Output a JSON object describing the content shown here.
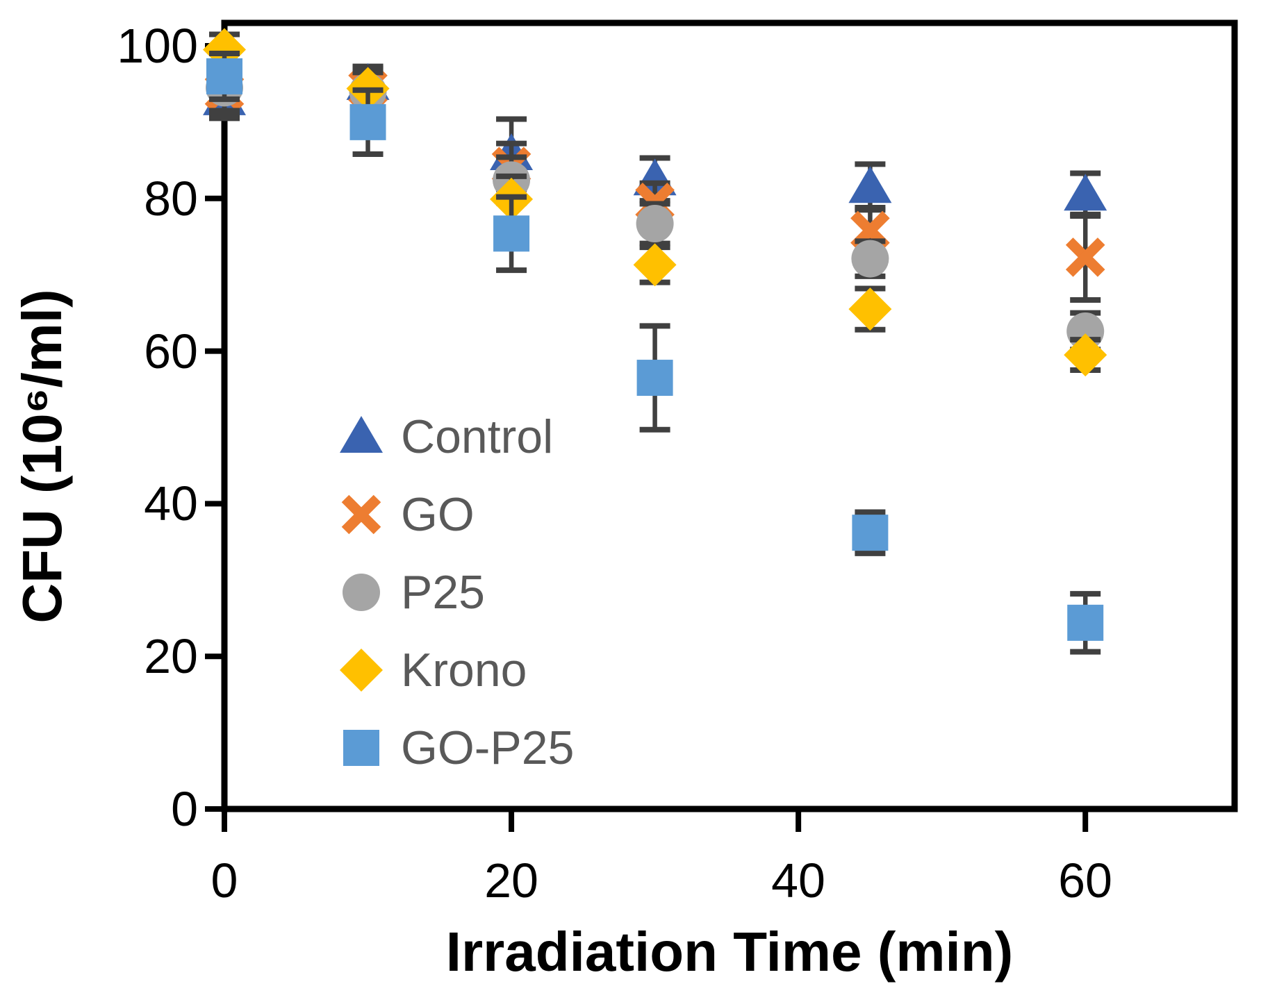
{
  "chart_data": {
    "type": "scatter",
    "title": "",
    "xlabel": "Irradiation Time (min)",
    "ylabel": "CFU (10⁶/ml)",
    "xlim": [
      0,
      70.4
    ],
    "ylim": [
      0,
      103
    ],
    "x_ticks": [
      0,
      20,
      40,
      60
    ],
    "x_tick_labels": [
      "0",
      "20",
      "40",
      "60"
    ],
    "y_ticks": [
      0,
      20,
      40,
      60,
      80,
      100
    ],
    "y_tick_labels": [
      "0",
      "20",
      "40",
      "60",
      "80",
      "100"
    ],
    "grid": false,
    "legend_position": "inside-left-middle",
    "x": [
      0,
      10,
      20,
      30,
      45,
      60
    ],
    "series": [
      {
        "name": "Control",
        "marker": "triangle",
        "color": "#3A63B0",
        "values": [
          93,
          95,
          85.8,
          82.5,
          81.5,
          80.5
        ],
        "errors": [
          2.5,
          2.3,
          4.6,
          2.8,
          3.0,
          2.8
        ]
      },
      {
        "name": "GO",
        "marker": "x",
        "color": "#ED7D31",
        "values": [
          94,
          94.5,
          84.2,
          79.5,
          75.8,
          72.3
        ],
        "errors": [
          3.0,
          2.5,
          3.0,
          2.5,
          3.0,
          5.6
        ]
      },
      {
        "name": "P25",
        "marker": "circle",
        "color": "#A5A5A5",
        "values": [
          94.5,
          94,
          82.4,
          76.7,
          72.1,
          62.6
        ],
        "errors": [
          3.0,
          2.5,
          3.0,
          2.6,
          2.3,
          2.4
        ]
      },
      {
        "name": "Krono",
        "marker": "diamond",
        "color": "#FFC000",
        "values": [
          99.5,
          94.4,
          79.9,
          71.3,
          65.5,
          59.5
        ],
        "errors": [
          2.0,
          2.8,
          3.0,
          2.3,
          2.7,
          2.0
        ]
      },
      {
        "name": "GO-P25",
        "marker": "square",
        "color": "#5B9BD5",
        "values": [
          96,
          90,
          75.4,
          56.5,
          36.2,
          24.4
        ],
        "errors": [
          3.0,
          4.2,
          4.8,
          6.8,
          2.7,
          3.8
        ]
      }
    ],
    "error_bar_color": "#404040",
    "axis_color": "#000000",
    "legend_text_color": "#595959",
    "legend": [
      "Control",
      "GO",
      "P25",
      "Krono",
      "GO-P25"
    ]
  }
}
